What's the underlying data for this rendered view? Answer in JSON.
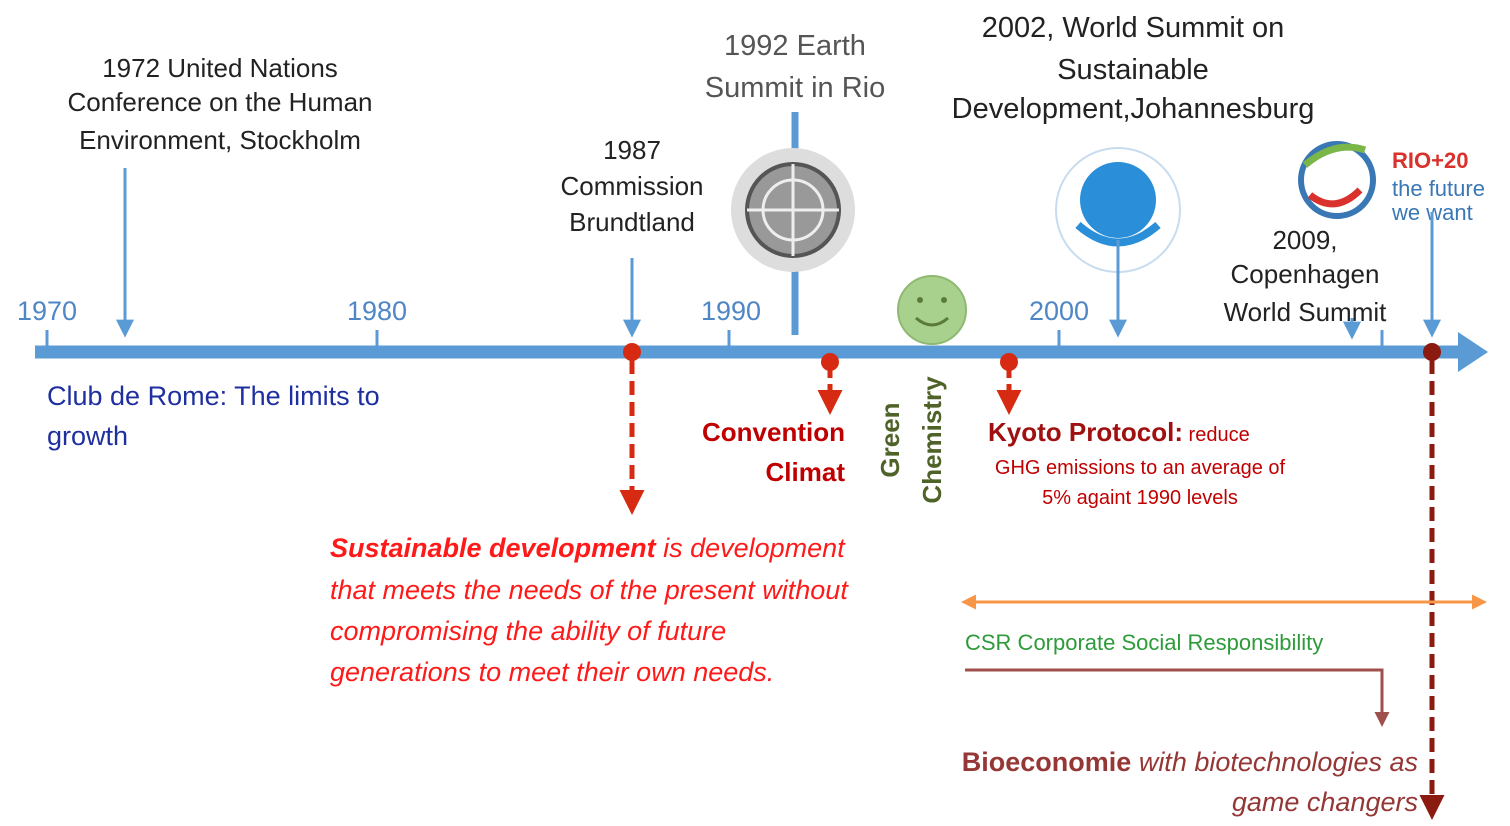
{
  "axis": {
    "years": [
      "1970",
      "1980",
      "1990",
      "2000"
    ]
  },
  "events_above": [
    {
      "lines": [
        "1972 United Nations",
        "Conference on the Human",
        "Environment, Stockholm"
      ]
    },
    {
      "lines": [
        "1987",
        "Commission",
        "Brundtland"
      ]
    },
    {
      "lines": [
        "1992 Earth",
        "Summit in Rio"
      ]
    },
    {
      "lines": [
        "2002, World Summit on",
        "Sustainable",
        "Development,Johannesburg"
      ]
    },
    {
      "lines": [
        "2009,",
        "Copenhagen",
        "World Summit"
      ]
    }
  ],
  "rio20_logo": {
    "title": "RIO+20",
    "lines": [
      "the future",
      "we want"
    ]
  },
  "club_de_rome": {
    "lines": [
      "Club de Rome: The limits to",
      "growth"
    ]
  },
  "convention_climat": {
    "lines": [
      "Convention",
      "Climat"
    ]
  },
  "green_chemistry": {
    "lines": [
      "Green",
      "Chemistry"
    ]
  },
  "kyoto": {
    "title": "Kyoto Protocol:",
    "lines": [
      " reduce",
      "GHG emissions to an average of",
      "5% againt 1990 levels"
    ]
  },
  "sustainable_development": {
    "term": "Sustainable development",
    "lines": [
      " is development",
      "that meets the needs of the present without",
      "compromising the ability of future",
      "generations to meet their own needs."
    ]
  },
  "csr": "CSR Corporate Social Responsibility",
  "bioeconomie": {
    "term": "Bioeconomie",
    "lines": [
      " with biotechnologies as",
      "game changers"
    ]
  }
}
